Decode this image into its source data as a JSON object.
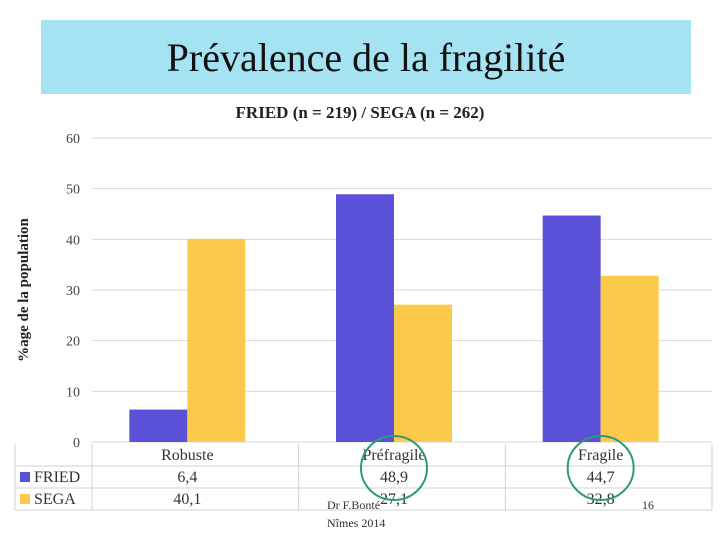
{
  "slide": {
    "title": "Prévalence de la fragilité",
    "footer_line1": "Dr F.Bonté",
    "footer_line2": "Nîmes 2014",
    "page_number": "16"
  },
  "colors": {
    "title_background": "#a6e3f2",
    "fried": "#5b51d8",
    "sega": "#fbca4b",
    "highlight_circle": "#2e9b73"
  },
  "chart_data": {
    "type": "bar",
    "title": "FRIED (n = 219) / SEGA (n = 262)",
    "ylabel": "%age de la population",
    "xlabel": "",
    "categories": [
      "Robuste",
      "Préfragile",
      "Fragile"
    ],
    "series": [
      {
        "name": "FRIED",
        "values": [
          6.4,
          48.9,
          44.7
        ],
        "labels": [
          "6,4",
          "48,9",
          "44,7"
        ]
      },
      {
        "name": "SEGA",
        "values": [
          40.1,
          27.1,
          32.8
        ],
        "labels": [
          "40,1",
          "27,1",
          "32,8"
        ]
      }
    ],
    "ylim": [
      0,
      60
    ],
    "yticks": [
      0,
      10,
      20,
      30,
      40,
      50,
      60
    ],
    "grid": true,
    "legend": "data table below chart",
    "highlighted_categories": [
      "Préfragile",
      "Fragile"
    ]
  }
}
